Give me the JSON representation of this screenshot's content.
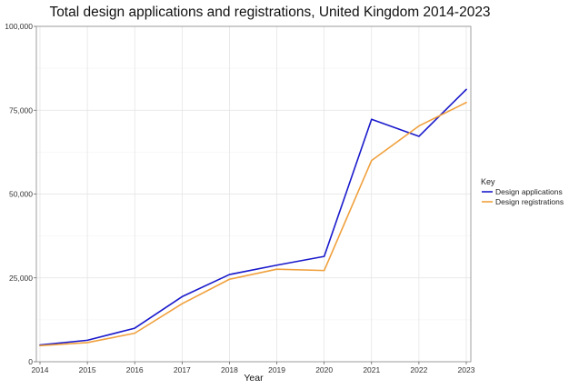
{
  "chart_data": {
    "type": "line",
    "title": "Total design applications and registrations, United Kingdom 2014-2023",
    "xlabel": "Year",
    "ylabel": "",
    "x": [
      2014,
      2015,
      2016,
      2017,
      2018,
      2019,
      2020,
      2021,
      2022,
      2023
    ],
    "ylim": [
      0,
      100000
    ],
    "yticks": [
      0,
      25000,
      50000,
      75000,
      100000
    ],
    "ytick_labels": [
      "0",
      "25,000",
      "50,000",
      "75,000",
      "100,000"
    ],
    "grid": true,
    "legend_title": "Key",
    "legend_position": "right",
    "series": [
      {
        "name": "Design applications",
        "color": "#1a1acc",
        "values": [
          5000,
          6400,
          10000,
          19400,
          26000,
          28800,
          31400,
          72300,
          67200,
          81200
        ]
      },
      {
        "name": "Design registrations",
        "color": "#f0a03c",
        "values": [
          4800,
          5700,
          8500,
          17300,
          24600,
          27600,
          27200,
          60000,
          70300,
          77300
        ]
      }
    ]
  }
}
